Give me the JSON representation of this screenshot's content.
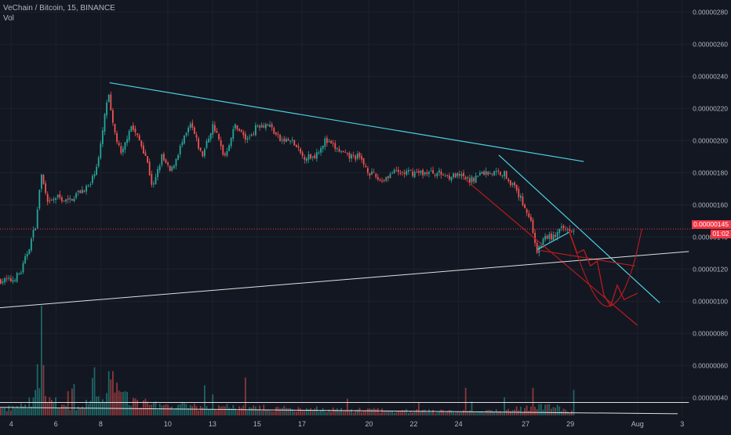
{
  "header": {
    "symbol_line": "VeChain / Bitcoin, 15, BINANCE",
    "volume_label": "Vol"
  },
  "colors": {
    "background": "#131722",
    "grid": "#1e222d",
    "axis_text": "#b2b5be",
    "candle_up": "#26a69a",
    "candle_down": "#ef5350",
    "trendline_cyan": "#4dd0e1",
    "trendline_red": "#b71c1c",
    "trendline_white": "#e0e0e0",
    "current_price": "#f23645"
  },
  "current_price": {
    "label": "0.00000145",
    "value": 1.45e-06,
    "timer": "01:02"
  },
  "chart_data": {
    "type": "candlestick",
    "title": "VeChain / Bitcoin, 15, BINANCE",
    "xlabel": "",
    "ylabel": "",
    "ylim": [
      2.8e-07,
      2.875e-06
    ],
    "y_tick_values": [
      4e-07,
      6e-07,
      8e-07,
      1e-06,
      1.2e-06,
      1.4e-06,
      1.6e-06,
      1.8e-06,
      2e-06,
      2.2e-06,
      2.4e-06,
      2.6e-06,
      2.8e-06
    ],
    "y_tick_labels": [
      "0.00000040",
      "0.00000060",
      "0.00000080",
      "0.00000100",
      "0.00000120",
      "0.00000140",
      "0.00000160",
      "0.00000180",
      "0.00000200",
      "0.00000220",
      "0.00000240",
      "0.00000260",
      "0.00000280"
    ],
    "x_range": [
      3.5,
      34.5
    ],
    "x_ticks": [
      {
        "day": 4,
        "label": "4"
      },
      {
        "day": 6,
        "label": "6"
      },
      {
        "day": 8,
        "label": "8"
      },
      {
        "day": 11,
        "label": "10"
      },
      {
        "day": 13,
        "label": "13"
      },
      {
        "day": 15,
        "label": "15"
      },
      {
        "day": 17,
        "label": "17"
      },
      {
        "day": 20,
        "label": "20"
      },
      {
        "day": 22,
        "label": "22"
      },
      {
        "day": 24,
        "label": "24"
      },
      {
        "day": 27,
        "label": "27"
      },
      {
        "day": 29,
        "label": "29"
      },
      {
        "day": 32,
        "label": "Aug"
      },
      {
        "day": 34,
        "label": "3"
      }
    ],
    "price_path": [
      [
        3.5,
        1.13e-06
      ],
      [
        4.0,
        1.13e-06
      ],
      [
        4.4,
        1.18e-06
      ],
      [
        4.8,
        1.35e-06
      ],
      [
        5.1,
        1.5e-06
      ],
      [
        5.3,
        1.8e-06
      ],
      [
        5.6,
        1.6e-06
      ],
      [
        6.0,
        1.65e-06
      ],
      [
        6.5,
        1.62e-06
      ],
      [
        7.0,
        1.68e-06
      ],
      [
        7.5,
        1.72e-06
      ],
      [
        7.9,
        1.9e-06
      ],
      [
        8.1,
        2.1e-06
      ],
      [
        8.3,
        2.3e-06
      ],
      [
        8.5,
        2.1e-06
      ],
      [
        8.9,
        1.9e-06
      ],
      [
        9.3,
        2.1e-06
      ],
      [
        9.7,
        2e-06
      ],
      [
        10.0,
        1.9e-06
      ],
      [
        10.3,
        1.7e-06
      ],
      [
        10.7,
        1.9e-06
      ],
      [
        11.1,
        1.8e-06
      ],
      [
        11.5,
        1.95e-06
      ],
      [
        12.0,
        2.1e-06
      ],
      [
        12.5,
        1.9e-06
      ],
      [
        13.0,
        2.1e-06
      ],
      [
        13.5,
        1.9e-06
      ],
      [
        14.0,
        2.1e-06
      ],
      [
        14.5,
        2e-06
      ],
      [
        15.0,
        2.1e-06
      ],
      [
        15.5,
        2.1e-06
      ],
      [
        16.0,
        2e-06
      ],
      [
        16.5,
        2e-06
      ],
      [
        17.0,
        1.9e-06
      ],
      [
        17.5,
        1.9e-06
      ],
      [
        18.0,
        2e-06
      ],
      [
        18.5,
        1.95e-06
      ],
      [
        19.0,
        1.9e-06
      ],
      [
        19.5,
        1.9e-06
      ],
      [
        20.0,
        1.8e-06
      ],
      [
        20.5,
        1.75e-06
      ],
      [
        21.0,
        1.8e-06
      ],
      [
        21.5,
        1.8e-06
      ],
      [
        22.0,
        1.8e-06
      ],
      [
        22.5,
        1.8e-06
      ],
      [
        23.0,
        1.8e-06
      ],
      [
        23.5,
        1.78e-06
      ],
      [
        24.0,
        1.78e-06
      ],
      [
        24.5,
        1.75e-06
      ],
      [
        25.0,
        1.8e-06
      ],
      [
        25.5,
        1.8e-06
      ],
      [
        26.0,
        1.8e-06
      ],
      [
        26.5,
        1.7e-06
      ],
      [
        26.9,
        1.6e-06
      ],
      [
        27.2,
        1.5e-06
      ],
      [
        27.5,
        1.3e-06
      ],
      [
        27.8,
        1.4e-06
      ],
      [
        28.2,
        1.4e-06
      ],
      [
        28.6,
        1.45e-06
      ],
      [
        29.0,
        1.45e-06
      ],
      [
        29.2,
        1.45e-06
      ]
    ],
    "volume_ylim": [
      0,
      100
    ],
    "volume_profile": [
      [
        3.5,
        8
      ],
      [
        4.5,
        12
      ],
      [
        5.0,
        20
      ],
      [
        5.3,
        85
      ],
      [
        5.6,
        30
      ],
      [
        6.0,
        15
      ],
      [
        7.0,
        12
      ],
      [
        8.0,
        20
      ],
      [
        8.4,
        60
      ],
      [
        8.8,
        25
      ],
      [
        10.0,
        15
      ],
      [
        12.0,
        12
      ],
      [
        14.0,
        10
      ],
      [
        16.0,
        10
      ],
      [
        18.0,
        8
      ],
      [
        20.0,
        7
      ],
      [
        22.0,
        6
      ],
      [
        24.0,
        5
      ],
      [
        26.0,
        6
      ],
      [
        27.5,
        12
      ],
      [
        28.5,
        10
      ],
      [
        29.2,
        5
      ]
    ],
    "trendlines": [
      {
        "color": "cyan",
        "points": [
          [
            8.4,
            2.36e-06
          ],
          [
            29.6,
            1.87e-06
          ]
        ]
      },
      {
        "color": "cyan",
        "points": [
          [
            25.8,
            1.91e-06
          ],
          [
            33.0,
            9.9e-07
          ]
        ]
      },
      {
        "color": "cyan",
        "points": [
          [
            27.5,
            1.32e-06
          ],
          [
            28.95,
            1.43e-06
          ]
        ]
      },
      {
        "color": "red",
        "points": [
          [
            24.2,
            1.77e-06
          ],
          [
            32.0,
            8.5e-07
          ]
        ]
      },
      {
        "color": "red",
        "points": [
          [
            27.5,
            1.32e-06
          ],
          [
            31.9,
            1.22e-06
          ]
        ]
      },
      {
        "color": "white",
        "points": [
          [
            3.5,
            9.6e-07
          ],
          [
            34.3,
            1.31e-06
          ]
        ]
      },
      {
        "color": "white",
        "points": [
          [
            3.5,
            3.7e-07
          ],
          [
            34.3,
            3.7e-07
          ]
        ]
      },
      {
        "color": "white",
        "points": [
          [
            3.5,
            3.4e-07
          ],
          [
            33.8,
            3e-07
          ]
        ]
      }
    ],
    "projection_path": [
      [
        28.95,
        1.44e-06
      ],
      [
        29.3,
        1.3e-06
      ],
      [
        29.6,
        1.32e-06
      ],
      [
        29.9,
        1.22e-06
      ],
      [
        30.2,
        1.25e-06
      ],
      [
        30.5,
        1.04e-06
      ],
      [
        30.8,
        9.7e-07
      ],
      [
        31.1,
        1.1e-06
      ],
      [
        31.4,
        1.01e-06
      ],
      [
        31.7,
        1.03e-06
      ],
      [
        32.0,
        1.05e-06
      ]
    ],
    "projection_curve": [
      [
        28.95,
        1.43e-06
      ],
      [
        29.8,
        1.1e-06
      ],
      [
        30.5,
        9.5e-07
      ],
      [
        31.2,
        1e-06
      ],
      [
        31.8,
        1.2e-06
      ],
      [
        32.2,
        1.45e-06
      ]
    ],
    "current_price": 1.45e-06
  }
}
